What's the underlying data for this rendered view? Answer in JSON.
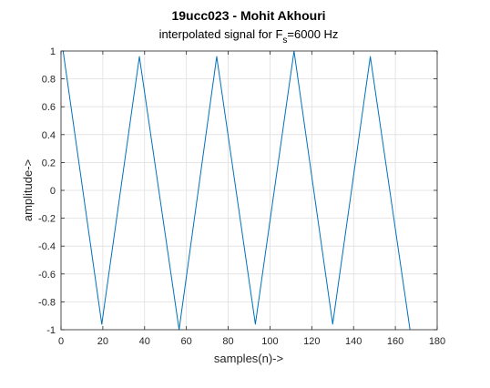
{
  "chart_data": {
    "type": "line",
    "title": "19ucc023 - Mohit Akhouri",
    "subtitle": {
      "prefix": "interpolated signal for F",
      "subscript": "s",
      "suffix": "=6000 Hz"
    },
    "xlabel": "samples(n)->",
    "ylabel": "amplitude->",
    "xlim": [
      0,
      180
    ],
    "ylim": [
      -1,
      1
    ],
    "xticks": [
      0,
      20,
      40,
      60,
      80,
      100,
      120,
      140,
      160,
      180
    ],
    "yticks": [
      -1,
      -0.8,
      -0.6,
      -0.4,
      -0.2,
      0,
      0.2,
      0.4,
      0.6,
      0.8,
      1
    ],
    "xtick_labels": [
      "0",
      "20",
      "40",
      "60",
      "80",
      "100",
      "120",
      "140",
      "160",
      "180"
    ],
    "ytick_labels": [
      "-1",
      "-0.8",
      "-0.6",
      "-0.4",
      "-0.2",
      "0",
      "0.2",
      "0.4",
      "0.6",
      "0.8",
      "1"
    ],
    "grid": true,
    "line_color": "#0072BD",
    "series": [
      {
        "x": [
          1,
          19.5,
          37.5,
          56.5,
          74.5,
          93,
          111.5,
          130,
          148,
          167
        ],
        "values": [
          1,
          -0.96,
          0.96,
          -1.0,
          0.96,
          -0.96,
          1.0,
          -0.96,
          0.96,
          -1.0
        ]
      }
    ]
  }
}
